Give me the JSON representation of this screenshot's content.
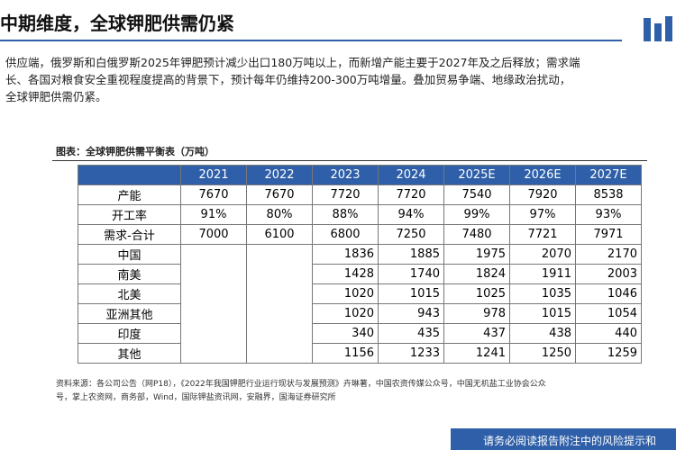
{
  "header": {
    "title": "中期维度，全球钾肥供需仍紧"
  },
  "body": {
    "bullet_lines": [
      "供应端，俄罗斯和白俄罗斯2025年钾肥预计减少出口180万吨以上，而新增产能主要于2027年及之后释放；需求端",
      "长、各国对粮食安全重视程度提高的背景下，预计每年仍维持200-300万吨增量。叠加贸易争端、地缘政治扰动，",
      "全球钾肥供需仍紧。"
    ]
  },
  "table": {
    "caption": "图表：全球钾肥供需平衡表（万吨）",
    "columns": [
      "2021",
      "2022",
      "2023",
      "2024",
      "2025E",
      "2026E",
      "2027E"
    ],
    "rows": [
      {
        "label": "产能",
        "cells": [
          "7670",
          "7670",
          "7720",
          "7720",
          "7540",
          "7920",
          "8538"
        ]
      },
      {
        "label": "开工率",
        "cells": [
          "91%",
          "80%",
          "88%",
          "94%",
          "99%",
          "97%",
          "93%"
        ]
      },
      {
        "label": "需求-合计",
        "cells": [
          "7000",
          "6100",
          "6800",
          "7250",
          "7480",
          "7721",
          "7971"
        ]
      },
      {
        "label": "中国",
        "cells": [
          null,
          null,
          "1836",
          "1885",
          "1975",
          "2070",
          "2170"
        ]
      },
      {
        "label": "南美",
        "cells": [
          null,
          null,
          "1428",
          "1740",
          "1824",
          "1911",
          "2003"
        ]
      },
      {
        "label": "北美",
        "cells": [
          null,
          null,
          "1020",
          "1015",
          "1025",
          "1035",
          "1046"
        ]
      },
      {
        "label": "亚洲其他",
        "cells": [
          null,
          null,
          "1020",
          "943",
          "978",
          "1015",
          "1054"
        ]
      },
      {
        "label": "印度",
        "cells": [
          null,
          null,
          "340",
          "435",
          "437",
          "438",
          "440"
        ]
      },
      {
        "label": "其他",
        "cells": [
          null,
          null,
          "1156",
          "1233",
          "1241",
          "1250",
          "1259"
        ]
      }
    ]
  },
  "source": {
    "lines": [
      "资料来源：各公司公告（网P18），《2022年我国钾肥行业运行现状与发展预测》卉琳著，中国农资传媒公众号，中国无机盐工业协会公众",
      "号，掌上农资网，商务部，Wind，国际钾盐资讯网，安融界，国海证券研究所"
    ]
  },
  "footer": {
    "text": "请务必阅读报告附注中的风险提示和"
  }
}
